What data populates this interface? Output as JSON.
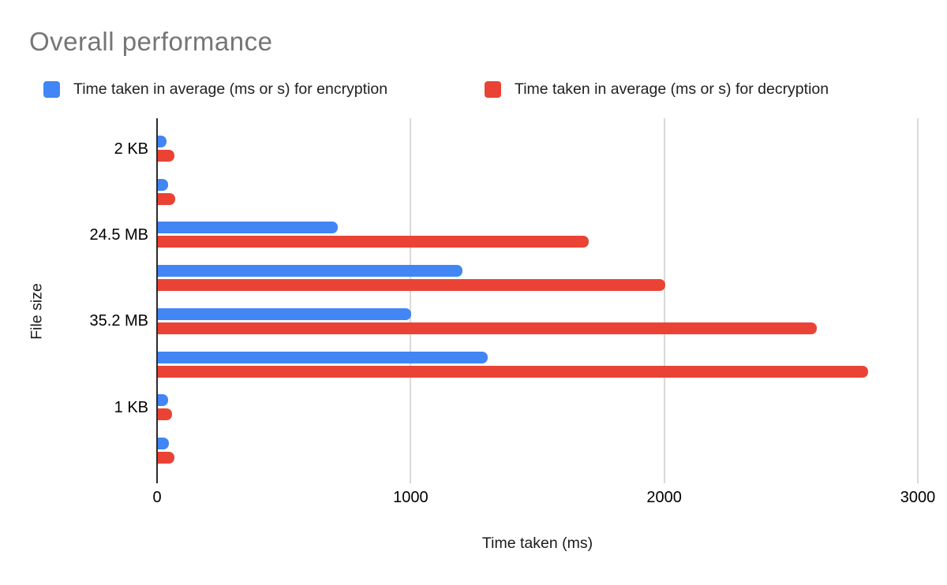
{
  "title": "Overall performance",
  "legend": [
    {
      "label": "Time taken in average (ms or s) for encryption",
      "color": "#4285F4"
    },
    {
      "label": "Time taken in average (ms or s) for decryption",
      "color": "#EA4335"
    }
  ],
  "axes": {
    "y_title": "File size",
    "x_title": "Time taken (ms)",
    "x_tick_labels": [
      "0",
      "1000",
      "2000",
      "3000"
    ]
  },
  "colors": {
    "encryption_bar": "#4285F4",
    "decryption_bar": "#EA4335",
    "title_text": "#757575",
    "gridline": "#d9d9d9",
    "axis_line": "#2b2b2b"
  },
  "chart_data": {
    "type": "bar",
    "orientation": "horizontal",
    "title": "Overall performance",
    "xlabel": "Time taken (ms)",
    "ylabel": "File size",
    "xlim": [
      0,
      3000
    ],
    "x_ticks": [
      0,
      1000,
      2000,
      3000
    ],
    "grid": true,
    "legend_position": "top",
    "categories": [
      "2 KB",
      "",
      "24.5 MB",
      "",
      "35.2 MB",
      "",
      "1 KB",
      ""
    ],
    "series": [
      {
        "name": "Time taken in average (ms or s) for encryption",
        "color": "#4285F4",
        "values": [
          35,
          40,
          710,
          1200,
          1000,
          1300,
          40,
          45
        ]
      },
      {
        "name": "Time taken in average (ms or s) for decryption",
        "color": "#EA4335",
        "values": [
          65,
          70,
          1700,
          2000,
          2600,
          2800,
          55,
          65
        ]
      }
    ]
  }
}
